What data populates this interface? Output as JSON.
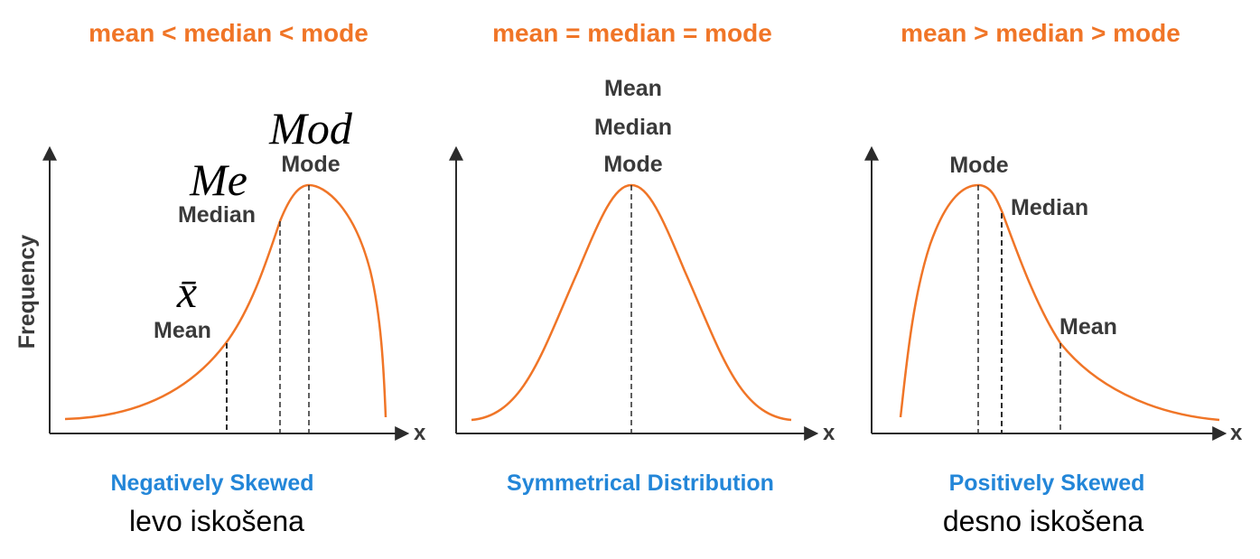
{
  "colors": {
    "curve": "#f07527",
    "relation_text": "#f07527",
    "caption_text": "#2386d8",
    "label_text": "#3a3a3a",
    "axis": "#2b2b2b"
  },
  "ylabel": "Frequency",
  "x_axis_label": "x",
  "panels": [
    {
      "relation": "mean < median < mode",
      "caption": "Negatively Skewed",
      "subcaption": "levo iskošena",
      "labels": {
        "mean": "Mean",
        "median": "Median",
        "mode": "Mode"
      },
      "symbols": {
        "mean": "x̄",
        "median": "Me",
        "mode": "Mod"
      }
    },
    {
      "relation": "mean = median = mode",
      "caption": "Symmetrical Distribution",
      "labels": {
        "mean": "Mean",
        "median": "Median",
        "mode": "Mode"
      }
    },
    {
      "relation": "mean > median > mode",
      "caption": "Positively Skewed",
      "subcaption": "desno iskošena",
      "labels": {
        "mean": "Mean",
        "median": "Median",
        "mode": "Mode"
      }
    }
  ]
}
